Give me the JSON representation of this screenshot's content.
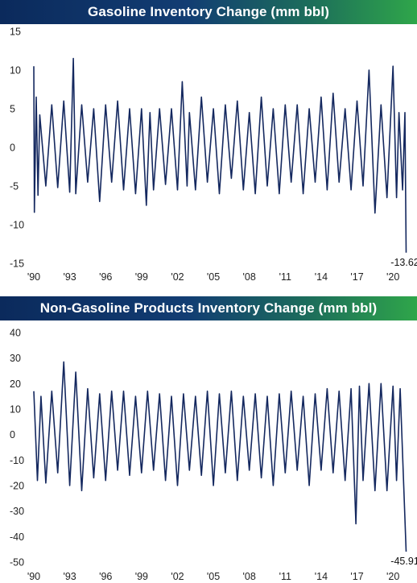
{
  "chart_data": [
    {
      "type": "line",
      "title": "Gasoline Inventory Change (mm bbl)",
      "xlabel": "",
      "ylabel": "",
      "xlim": [
        1990,
        2021.2
      ],
      "ylim": [
        -15,
        15
      ],
      "yticks": [
        "15",
        "10",
        "5",
        "0",
        "-5",
        "-10",
        "-15"
      ],
      "ytick_values": [
        15,
        10,
        5,
        0,
        -5,
        -10,
        -15
      ],
      "xticks": [
        "'90",
        "'93",
        "'96",
        "'99",
        "'02",
        "'05",
        "'08",
        "'11",
        "'14",
        "'17",
        "'20"
      ],
      "xtick_values": [
        1990,
        1993,
        1996,
        1999,
        2002,
        2005,
        2008,
        2011,
        2014,
        2017,
        2020
      ],
      "grid": false,
      "color": "#14285f",
      "series": [
        {
          "x": [
            1990.0,
            1990.05,
            1990.2,
            1990.35,
            1990.5,
            1991.0,
            1991.5,
            1992.0,
            1992.5,
            1993.0,
            1993.3,
            1993.5,
            1994.0,
            1994.5,
            1995.0,
            1995.5,
            1996.0,
            1996.5,
            1997.0,
            1997.5,
            1998.0,
            1998.5,
            1999.0,
            1999.4,
            1999.7,
            2000.0,
            2000.5,
            2001.0,
            2001.5,
            2002.0,
            2002.4,
            2002.8,
            2003.0,
            2003.5,
            2004.0,
            2004.5,
            2005.0,
            2005.5,
            2006.0,
            2006.5,
            2007.0,
            2007.5,
            2008.0,
            2008.5,
            2009.0,
            2009.5,
            2010.0,
            2010.5,
            2011.0,
            2011.5,
            2012.0,
            2012.5,
            2013.0,
            2013.5,
            2014.0,
            2014.5,
            2015.0,
            2015.5,
            2016.0,
            2016.5,
            2017.0,
            2017.5,
            2018.0,
            2018.5,
            2019.0,
            2019.5,
            2020.0,
            2020.3,
            2020.5,
            2020.8,
            2021.0,
            2021.1
          ],
          "y": [
            10.5,
            -8.4,
            6.5,
            -6.2,
            4.2,
            -5.0,
            5.5,
            -5.2,
            6.0,
            -5.8,
            11.5,
            -6.0,
            5.5,
            -4.5,
            5.0,
            -7.0,
            5.5,
            -4.5,
            6.0,
            -5.5,
            5.0,
            -6.0,
            5.0,
            -7.5,
            4.5,
            -5.5,
            5.0,
            -4.8,
            5.0,
            -5.5,
            8.5,
            -5.0,
            4.5,
            -5.5,
            6.5,
            -4.5,
            5.0,
            -6.0,
            5.5,
            -4.0,
            6.0,
            -5.5,
            4.5,
            -6.0,
            6.5,
            -5.0,
            5.0,
            -6.0,
            5.5,
            -4.5,
            5.5,
            -6.0,
            5.0,
            -4.5,
            6.5,
            -5.5,
            7.0,
            -4.5,
            5.0,
            -5.5,
            6.0,
            -5.0,
            10.0,
            -8.5,
            5.5,
            -6.5,
            10.5,
            -6.5,
            4.5,
            -5.5,
            4.5,
            -13.624
          ]
        }
      ],
      "annotations": [
        {
          "x": 2021.1,
          "y": -13.624,
          "text": "-13.624"
        }
      ]
    },
    {
      "type": "line",
      "title": "Non-Gasoline Products Inventory Change (mm bbl)",
      "xlabel": "",
      "ylabel": "",
      "xlim": [
        1990,
        2021.2
      ],
      "ylim": [
        -50,
        40
      ],
      "yticks": [
        "40",
        "30",
        "20",
        "10",
        "0",
        "-10",
        "-20",
        "-30",
        "-40",
        "-50"
      ],
      "ytick_values": [
        40,
        30,
        20,
        10,
        0,
        -10,
        -20,
        -30,
        -40,
        -50
      ],
      "xticks": [
        "'90",
        "'93",
        "'96",
        "'99",
        "'02",
        "'05",
        "'08",
        "'11",
        "'14",
        "'17",
        "'20"
      ],
      "xtick_values": [
        1990,
        1993,
        1996,
        1999,
        2002,
        2005,
        2008,
        2011,
        2014,
        2017,
        2020
      ],
      "grid": false,
      "color": "#14285f",
      "series": [
        {
          "x": [
            1990.0,
            1990.3,
            1990.6,
            1991.0,
            1991.5,
            1992.0,
            1992.5,
            1993.0,
            1993.5,
            1994.0,
            1994.5,
            1995.0,
            1995.5,
            1996.0,
            1996.5,
            1997.0,
            1997.5,
            1998.0,
            1998.5,
            1999.0,
            1999.5,
            2000.0,
            2000.5,
            2001.0,
            2001.5,
            2002.0,
            2002.5,
            2003.0,
            2003.5,
            2004.0,
            2004.5,
            2005.0,
            2005.5,
            2006.0,
            2006.5,
            2007.0,
            2007.5,
            2008.0,
            2008.5,
            2009.0,
            2009.5,
            2010.0,
            2010.5,
            2011.0,
            2011.5,
            2012.0,
            2012.5,
            2013.0,
            2013.5,
            2014.0,
            2014.5,
            2015.0,
            2015.5,
            2016.0,
            2016.5,
            2016.9,
            2017.2,
            2017.5,
            2018.0,
            2018.5,
            2019.0,
            2019.5,
            2020.0,
            2020.3,
            2020.6,
            2020.9,
            2021.1
          ],
          "y": [
            17.0,
            -18.0,
            15.0,
            -19.0,
            17.0,
            -15.0,
            28.5,
            -20.0,
            24.5,
            -22.0,
            18.0,
            -17.0,
            16.0,
            -18.0,
            17.0,
            -14.0,
            17.0,
            -16.0,
            15.0,
            -15.0,
            17.0,
            -14.0,
            16.0,
            -18.0,
            15.0,
            -20.0,
            16.0,
            -14.0,
            15.0,
            -16.0,
            17.0,
            -20.0,
            16.0,
            -15.0,
            17.0,
            -18.0,
            15.0,
            -14.0,
            16.0,
            -17.0,
            15.0,
            -20.0,
            16.0,
            -15.0,
            17.0,
            -14.0,
            15.0,
            -20.0,
            16.0,
            -14.0,
            18.0,
            -15.0,
            17.0,
            -18.0,
            18.0,
            -35.0,
            19.0,
            -18.0,
            20.0,
            -22.0,
            20.0,
            -22.0,
            19.0,
            -18.0,
            18.0,
            -20.0,
            -45.914
          ]
        }
      ],
      "annotations": [
        {
          "x": 2021.1,
          "y": -45.914,
          "text": "-45.914"
        }
      ]
    }
  ]
}
